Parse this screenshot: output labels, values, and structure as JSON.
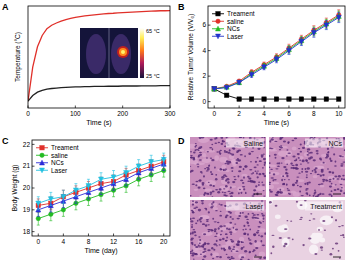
{
  "chart_data": [
    {
      "type": "line",
      "label": "A",
      "x_label": "Time (s)",
      "y_label": "Temperature (°C)",
      "x": [
        0,
        10,
        20,
        30,
        40,
        50,
        60,
        70,
        80,
        90,
        100,
        110,
        120,
        130,
        140,
        150,
        160,
        170,
        180,
        190,
        200,
        210,
        220,
        230,
        240,
        250,
        260,
        270,
        280,
        290,
        300
      ],
      "series": [
        {
          "color": "#e0302a",
          "line_style": "solid",
          "values": [
            25,
            40,
            49,
            54,
            57,
            58.5,
            59.5,
            60.3,
            61,
            61.5,
            62,
            62.3,
            62.6,
            62.9,
            63.1,
            63.3,
            63.5,
            63.7,
            63.8,
            64,
            64.1,
            64.2,
            64.3,
            64.4,
            64.5,
            64.6,
            64.7,
            64.8,
            64.9,
            64.9,
            65
          ]
        },
        {
          "color": "#222222",
          "line_style": "solid",
          "values": [
            25,
            27.5,
            29,
            29.8,
            30.3,
            30.6,
            30.8,
            31,
            31.1,
            31.2,
            31.3,
            31.3,
            31.4,
            31.4,
            31.5,
            31.5,
            31.5,
            31.6,
            31.6,
            31.6,
            31.7,
            31.7,
            31.7,
            31.7,
            31.8,
            31.8,
            31.8,
            31.8,
            31.9,
            31.9,
            31.9
          ]
        }
      ],
      "xlim": [
        0,
        300
      ],
      "xticks": [
        0,
        100,
        200,
        300
      ],
      "ylim": [
        22,
        67
      ],
      "tick_labels": "x",
      "grid": false,
      "inset": {
        "scale_labels": [
          "65 °C",
          "25 °C"
        ]
      }
    },
    {
      "type": "line",
      "label": "B",
      "x_label": "Time (s)",
      "y_label": "Relative Tumor Volume (V/V₀)",
      "x": [
        0,
        1,
        2,
        3,
        4,
        5,
        6,
        7,
        8,
        9,
        10
      ],
      "series": [
        {
          "name": "Treament",
          "color": "#000000",
          "marker": "square",
          "line_style": "solid",
          "values": [
            1,
            0.5,
            0.2,
            0.2,
            0.2,
            0.2,
            0.2,
            0.2,
            0.2,
            0.2,
            0.2
          ],
          "errors": [
            0.05,
            0.05,
            0.05,
            0.05,
            0.05,
            0.05,
            0.05,
            0.05,
            0.05,
            0.05,
            0.05
          ]
        },
        {
          "name": "saline",
          "color": "#e0302a",
          "marker": "circle",
          "line_style": "solid",
          "values": [
            1,
            1.2,
            1.6,
            2.3,
            2.9,
            3.5,
            4.2,
            4.9,
            5.6,
            6.2,
            6.8
          ],
          "errors": [
            0.05,
            0.1,
            0.15,
            0.2,
            0.2,
            0.25,
            0.3,
            0.3,
            0.35,
            0.35,
            0.4
          ]
        },
        {
          "name": "NCs",
          "color": "#22bb22",
          "marker": "triangle",
          "line_style": "solid",
          "values": [
            1,
            1.15,
            1.5,
            2.2,
            2.8,
            3.4,
            4.1,
            4.8,
            5.5,
            6.1,
            6.7
          ],
          "errors": [
            0.05,
            0.1,
            0.15,
            0.2,
            0.2,
            0.25,
            0.3,
            0.3,
            0.35,
            0.35,
            0.4
          ]
        },
        {
          "name": "Laser",
          "color": "#2233cc",
          "marker": "triangle-down",
          "line_style": "solid",
          "values": [
            1,
            1.1,
            1.5,
            2.1,
            2.7,
            3.3,
            4.0,
            4.7,
            5.4,
            6.0,
            6.6
          ],
          "errors": [
            0.05,
            0.1,
            0.15,
            0.2,
            0.2,
            0.25,
            0.3,
            0.3,
            0.35,
            0.35,
            0.4
          ]
        }
      ],
      "xlim": [
        -0.5,
        10.5
      ],
      "xticks": [
        0,
        2,
        4,
        6,
        8,
        10
      ],
      "ylim": [
        -0.5,
        7.5
      ],
      "yticks": [
        0,
        2,
        4,
        6
      ],
      "legend": "upper left",
      "grid": false
    },
    {
      "type": "line",
      "label": "C",
      "x_label": "Time (day)",
      "y_label": "Body Weight (g)",
      "x": [
        0,
        2,
        4,
        6,
        8,
        10,
        12,
        14,
        16,
        18,
        20
      ],
      "series": [
        {
          "name": "Treament",
          "color": "#e0302a",
          "marker": "square",
          "line_style": "solid",
          "values": [
            19.2,
            19.3,
            19.6,
            19.8,
            20.0,
            20.2,
            20.3,
            20.6,
            20.8,
            21.0,
            21.2
          ],
          "errors": [
            0.3,
            0.3,
            0.3,
            0.3,
            0.3,
            0.3,
            0.3,
            0.3,
            0.3,
            0.3,
            0.3
          ]
        },
        {
          "name": "saline",
          "color": "#22bb22",
          "marker": "circle",
          "line_style": "solid",
          "values": [
            18.6,
            18.8,
            19.0,
            19.3,
            19.5,
            19.7,
            19.9,
            20.1,
            20.4,
            20.6,
            20.8
          ],
          "errors": [
            0.3,
            0.3,
            0.3,
            0.3,
            0.3,
            0.3,
            0.3,
            0.3,
            0.3,
            0.3,
            0.3
          ]
        },
        {
          "name": "NCs",
          "color": "#2b2bd8",
          "marker": "triangle",
          "line_style": "solid",
          "values": [
            19.0,
            19.2,
            19.4,
            19.6,
            19.8,
            20.0,
            20.2,
            20.4,
            20.7,
            20.9,
            21.1
          ],
          "errors": [
            0.3,
            0.3,
            0.3,
            0.3,
            0.3,
            0.3,
            0.3,
            0.3,
            0.3,
            0.3,
            0.3
          ]
        },
        {
          "name": "Laser",
          "color": "#22c0e0",
          "marker": "triangle-down",
          "line_style": "solid",
          "values": [
            19.3,
            19.5,
            19.6,
            19.9,
            20.1,
            20.4,
            20.5,
            20.7,
            21.0,
            21.2,
            21.3
          ],
          "errors": [
            0.3,
            0.3,
            0.3,
            0.3,
            0.3,
            0.3,
            0.3,
            0.3,
            0.3,
            0.3,
            0.3
          ]
        }
      ],
      "xlim": [
        -1,
        21
      ],
      "xticks": [
        0,
        4,
        8,
        12,
        16,
        20
      ],
      "ylim": [
        17.8,
        22.2
      ],
      "yticks": [
        18,
        19,
        20,
        21,
        22
      ],
      "legend": "upper left",
      "grid": false
    }
  ],
  "images": {
    "label": "D",
    "panels": [
      "Saline",
      "NCs",
      "Laser",
      "Treatment"
    ]
  }
}
